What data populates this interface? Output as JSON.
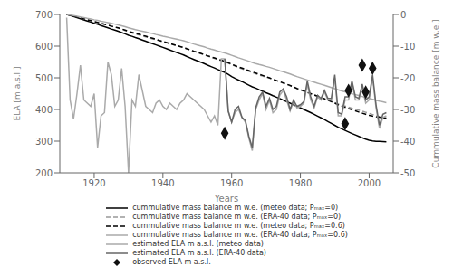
{
  "chart_data": {
    "type": "line",
    "xlabel": "Years",
    "ylabel": "ELA [m a.s.l.]",
    "y2label": "Cummulative mass balance [m w.e.]",
    "xlim": [
      1910,
      2007
    ],
    "xticks": [
      1920,
      1940,
      1960,
      1980,
      2000
    ],
    "ylim": [
      200,
      700
    ],
    "yticks": [
      200,
      300,
      400,
      500,
      600,
      700
    ],
    "y2lim": [
      -50,
      0
    ],
    "y2ticks": [
      0,
      -10,
      -20,
      -30,
      -40,
      -50
    ],
    "grid": false,
    "legend": "bottom",
    "series": [
      {
        "name": "cummulative mass balance m w.e. (meteo data; Pₘₐₓ=0)",
        "type": "line",
        "axis": "y2",
        "color": "#000000",
        "line_style": "solid",
        "x": [
          1912,
          1913,
          1914,
          1915,
          1916,
          1917,
          1918,
          1919,
          1920,
          1921,
          1922,
          1923,
          1924,
          1925,
          1926,
          1927,
          1928,
          1929,
          1930,
          1931,
          1932,
          1933,
          1934,
          1935,
          1936,
          1937,
          1938,
          1939,
          1940,
          1941,
          1942,
          1943,
          1944,
          1945,
          1946,
          1947,
          1948,
          1949,
          1950,
          1951,
          1952,
          1953,
          1954,
          1955,
          1956,
          1957,
          1958,
          1959,
          1960,
          1961,
          1962,
          1963,
          1964,
          1965,
          1966,
          1967,
          1968,
          1969,
          1970,
          1971,
          1972,
          1973,
          1974,
          1975,
          1976,
          1977,
          1978,
          1979,
          1980,
          1981,
          1982,
          1983,
          1984,
          1985,
          1986,
          1987,
          1988,
          1989,
          1990,
          1991,
          1992,
          1993,
          1994,
          1995,
          1996,
          1997,
          1998,
          1999,
          2000,
          2001,
          2002,
          2003,
          2004,
          2005
        ],
        "values": [
          0,
          -0.3,
          -0.65,
          -1.0,
          -1.35,
          -1.7,
          -2.05,
          -2.4,
          -2.8,
          -3.1,
          -3.5,
          -3.85,
          -4.2,
          -4.6,
          -4.95,
          -5.3,
          -5.7,
          -6.1,
          -6.55,
          -6.9,
          -7.3,
          -7.65,
          -8.05,
          -8.45,
          -8.85,
          -9.2,
          -9.6,
          -10.0,
          -10.4,
          -10.8,
          -11.2,
          -11.6,
          -12.0,
          -12.4,
          -12.8,
          -13.3,
          -13.75,
          -14.2,
          -14.65,
          -15.05,
          -15.5,
          -16.0,
          -16.45,
          -16.9,
          -17.4,
          -17.85,
          -18.3,
          -18.9,
          -19.6,
          -20.2,
          -20.7,
          -21.2,
          -21.75,
          -22.3,
          -22.85,
          -23.25,
          -23.75,
          -24.2,
          -24.7,
          -25.15,
          -25.65,
          -26.1,
          -26.55,
          -27.05,
          -27.55,
          -28.0,
          -28.5,
          -29.0,
          -29.5,
          -30.0,
          -30.5,
          -31.0,
          -31.55,
          -32.1,
          -32.65,
          -33.2,
          -33.8,
          -34.4,
          -35.0,
          -35.6,
          -36.1,
          -36.6,
          -37.1,
          -37.6,
          -38.05,
          -38.5,
          -38.95,
          -39.35,
          -39.7,
          -39.9,
          -40.05,
          -40.1,
          -40.15,
          -40.2
        ]
      },
      {
        "name": "cummulative mass balance m w.e. (ERA-40 data; Pₘₐₓ=0)",
        "type": "line",
        "axis": "y2",
        "color": "#999999",
        "line_style": "dashed",
        "x": [
          1912,
          1913,
          1914,
          1915,
          1916,
          1917,
          1918,
          1919,
          1920,
          1921,
          1922,
          1923,
          1924,
          1925,
          1926,
          1927,
          1928,
          1929,
          1930,
          1931,
          1932,
          1933,
          1934,
          1935,
          1936,
          1937,
          1938,
          1939,
          1940,
          1941,
          1942,
          1943,
          1944,
          1945,
          1946,
          1947,
          1948,
          1949,
          1950,
          1951,
          1952,
          1953,
          1954,
          1955,
          1956,
          1957,
          1958,
          1959,
          1960,
          1961,
          1962,
          1963,
          1964,
          1965,
          1966,
          1967,
          1968,
          1969,
          1970,
          1971,
          1972,
          1973,
          1974,
          1975,
          1976,
          1977,
          1978,
          1979,
          1980,
          1981,
          1982,
          1983,
          1984,
          1985,
          1986,
          1987,
          1988,
          1989,
          1990,
          1991,
          1992,
          1993,
          1994,
          1995,
          1996,
          1997,
          1998,
          1999,
          2000,
          2001,
          2002,
          2003,
          2004,
          2005
        ],
        "values": [
          0,
          -0.2,
          -0.45,
          -0.75,
          -1.05,
          -1.35,
          -1.65,
          -1.95,
          -2.25,
          -2.55,
          -2.85,
          -3.1,
          -3.4,
          -3.7,
          -4.0,
          -4.3,
          -4.65,
          -5.05,
          -5.45,
          -5.8,
          -6.15,
          -6.45,
          -6.75,
          -7.05,
          -7.4,
          -7.7,
          -8.0,
          -8.3,
          -8.6,
          -8.9,
          -9.2,
          -9.5,
          -9.8,
          -10.1,
          -10.4,
          -10.8,
          -11.2,
          -11.6,
          -12.0,
          -12.35,
          -12.75,
          -13.15,
          -13.5,
          -13.85,
          -14.25,
          -14.6,
          -14.95,
          -15.4,
          -15.85,
          -16.3,
          -16.75,
          -17.15,
          -17.55,
          -17.95,
          -18.35,
          -18.75,
          -19.1,
          -19.45,
          -19.8,
          -20.1,
          -20.5,
          -20.9,
          -21.3,
          -21.7,
          -22.1,
          -22.5,
          -22.95,
          -23.4,
          -23.8,
          -24.2,
          -24.65,
          -25.05,
          -25.45,
          -25.85,
          -26.25,
          -26.65,
          -27.05,
          -27.45,
          -27.85,
          -28.25,
          -28.6,
          -28.95,
          -29.3,
          -29.65,
          -29.95,
          -30.2,
          -30.55,
          -30.9,
          -31.25,
          -31.6,
          -31.95,
          -32.3,
          -32.6,
          -32.9
        ]
      },
      {
        "name": "cummulative mass balance m w.e. (meteo data; Pₘₐₓ=0.6)",
        "type": "line",
        "axis": "y2",
        "color": "#000000",
        "line_style": "dashed",
        "x": [
          1912,
          1913,
          1914,
          1915,
          1916,
          1917,
          1918,
          1919,
          1920,
          1921,
          1922,
          1923,
          1924,
          1925,
          1926,
          1927,
          1928,
          1929,
          1930,
          1931,
          1932,
          1933,
          1934,
          1935,
          1936,
          1937,
          1938,
          1939,
          1940,
          1941,
          1942,
          1943,
          1944,
          1945,
          1946,
          1947,
          1948,
          1949,
          1950,
          1951,
          1952,
          1953,
          1954,
          1955,
          1956,
          1957,
          1958,
          1959,
          1960,
          1961,
          1962,
          1963,
          1964,
          1965,
          1966,
          1967,
          1968,
          1969,
          1970,
          1971,
          1972,
          1973,
          1974,
          1975,
          1976,
          1977,
          1978,
          1979,
          1980,
          1981,
          1982,
          1983,
          1984,
          1985,
          1986,
          1987,
          1988,
          1989,
          1990,
          1991,
          1992,
          1993,
          1994,
          1995,
          1996,
          1997,
          1998,
          1999,
          2000,
          2001,
          2002,
          2003,
          2004,
          2005
        ],
        "values": [
          0,
          -0.25,
          -0.52,
          -0.8,
          -1.07,
          -1.35,
          -1.65,
          -1.92,
          -2.22,
          -2.5,
          -2.8,
          -3.08,
          -3.36,
          -3.68,
          -3.96,
          -4.24,
          -4.56,
          -4.92,
          -5.3,
          -5.62,
          -5.96,
          -6.24,
          -6.56,
          -6.88,
          -7.2,
          -7.52,
          -7.84,
          -8.2,
          -8.52,
          -8.84,
          -9.16,
          -9.48,
          -9.8,
          -10.12,
          -10.44,
          -10.84,
          -11.2,
          -11.6,
          -11.96,
          -12.28,
          -12.64,
          -13.04,
          -13.4,
          -13.72,
          -14.12,
          -14.44,
          -14.76,
          -15.2,
          -15.7,
          -16.16,
          -16.56,
          -16.92,
          -17.32,
          -17.72,
          -18.12,
          -18.48,
          -18.88,
          -19.24,
          -19.64,
          -20.0,
          -20.44,
          -20.84,
          -21.2,
          -21.6,
          -22.0,
          -22.4,
          -22.88,
          -23.36,
          -23.76,
          -24.16,
          -24.56,
          -24.96,
          -25.4,
          -25.8,
          -26.2,
          -26.6,
          -27.04,
          -27.52,
          -28.0,
          -28.48,
          -28.88,
          -29.28,
          -29.7,
          -30.08,
          -30.44,
          -30.82,
          -31.18,
          -31.52,
          -31.84,
          -32.08,
          -32.28,
          -32.44,
          -32.56,
          -32.7
        ]
      },
      {
        "name": "cummulative mass balance m w.e. (ERA-40 data; Pₘₐₓ=0.6)",
        "type": "line",
        "axis": "y2",
        "color": "#aaaaaa",
        "line_style": "solid",
        "x": [
          1912,
          1913,
          1914,
          1915,
          1916,
          1917,
          1918,
          1919,
          1920,
          1921,
          1922,
          1923,
          1924,
          1925,
          1926,
          1927,
          1928,
          1929,
          1930,
          1931,
          1932,
          1933,
          1934,
          1935,
          1936,
          1937,
          1938,
          1939,
          1940,
          1941,
          1942,
          1943,
          1944,
          1945,
          1946,
          1947,
          1948,
          1949,
          1950,
          1951,
          1952,
          1953,
          1954,
          1955,
          1956,
          1957,
          1958,
          1959,
          1960,
          1961,
          1962,
          1963,
          1964,
          1965,
          1966,
          1967,
          1968,
          1969,
          1970,
          1971,
          1972,
          1973,
          1974,
          1975,
          1976,
          1977,
          1978,
          1979,
          1980,
          1981,
          1982,
          1983,
          1984,
          1985,
          1986,
          1987,
          1988,
          1989,
          1990,
          1991,
          1992,
          1993,
          1994,
          1995,
          1996,
          1997,
          1998,
          1999,
          2000,
          2001,
          2002,
          2003,
          2004,
          2005
        ],
        "values": [
          0,
          -0.15,
          -0.35,
          -0.56,
          -0.8,
          -1.0,
          -1.24,
          -1.44,
          -1.68,
          -1.88,
          -2.12,
          -2.32,
          -2.56,
          -2.8,
          -3.04,
          -3.28,
          -3.56,
          -3.88,
          -4.2,
          -4.5,
          -4.8,
          -5.04,
          -5.28,
          -5.52,
          -5.8,
          -6.04,
          -6.32,
          -6.56,
          -6.84,
          -7.08,
          -7.32,
          -7.56,
          -7.8,
          -8.04,
          -8.28,
          -8.6,
          -8.96,
          -9.32,
          -9.64,
          -9.92,
          -10.24,
          -10.6,
          -10.92,
          -11.2,
          -11.56,
          -11.84,
          -12.12,
          -12.48,
          -12.88,
          -13.28,
          -13.68,
          -14.04,
          -14.4,
          -14.76,
          -15.12,
          -15.48,
          -15.8,
          -16.08,
          -16.4,
          -16.68,
          -17.04,
          -17.4,
          -17.76,
          -18.08,
          -18.44,
          -18.8,
          -19.2,
          -19.6,
          -19.96,
          -20.32,
          -20.68,
          -21.04,
          -21.36,
          -21.72,
          -22.04,
          -22.36,
          -22.72,
          -23.08,
          -23.44,
          -23.8,
          -24.12,
          -24.4,
          -24.72,
          -25.04,
          -25.32,
          -25.6,
          -25.9,
          -26.2,
          -26.5,
          -26.8,
          -27.08,
          -27.36,
          -27.6,
          -27.84
        ]
      },
      {
        "name": "estimated ELA m a.s.l. (meteo data)",
        "type": "line",
        "axis": "y",
        "color": "#aaaaaa",
        "line_style": "solid",
        "x": [
          1912,
          1913,
          1914,
          1915,
          1916,
          1917,
          1918,
          1919,
          1920,
          1921,
          1922,
          1923,
          1924,
          1925,
          1926,
          1927,
          1928,
          1929,
          1930,
          1931,
          1932,
          1933,
          1934,
          1935,
          1936,
          1937,
          1938,
          1939,
          1940,
          1941,
          1942,
          1943,
          1944,
          1945,
          1946,
          1947,
          1948,
          1949,
          1950,
          1951,
          1952,
          1953,
          1954,
          1955,
          1956,
          1957,
          1958,
          1959,
          1960,
          1961,
          1962,
          1963,
          1964,
          1965,
          1966,
          1967,
          1968,
          1969,
          1970,
          1971,
          1972,
          1973,
          1974,
          1975,
          1976,
          1977,
          1978,
          1979,
          1980,
          1981,
          1982,
          1983,
          1984,
          1985,
          1986,
          1987,
          1988,
          1989,
          1990,
          1991,
          1992,
          1993,
          1994,
          1995,
          1996,
          1997,
          1998,
          1999,
          2000,
          2001,
          2002,
          2003,
          2004,
          2005
        ],
        "values": [
          690,
          430,
          370,
          450,
          540,
          430,
          420,
          410,
          450,
          280,
          380,
          390,
          550,
          510,
          410,
          430,
          530,
          410,
          200,
          430,
          410,
          510,
          460,
          410,
          400,
          390,
          420,
          430,
          410,
          400,
          420,
          410,
          400,
          420,
          430,
          450,
          440,
          430,
          420,
          410,
          400,
          380,
          360,
          380,
          350,
          560,
          560,
          395,
          360,
          390,
          400,
          375,
          360,
          310,
          270,
          400,
          430,
          450,
          400,
          430,
          390,
          400,
          445,
          460,
          430,
          395,
          425,
          405,
          410,
          420,
          480,
          430,
          405,
          440,
          430,
          455,
          430,
          430,
          500,
          380,
          380,
          430,
          430,
          485,
          430,
          430,
          470,
          420,
          430,
          500,
          405,
          340,
          375,
          380
        ]
      },
      {
        "name": "estimated ELA m a.s.l. (ERA-40 data)",
        "type": "line",
        "axis": "y",
        "color": "#666666",
        "line_style": "solid",
        "x": [
          1958,
          1959,
          1960,
          1961,
          1962,
          1963,
          1964,
          1965,
          1966,
          1967,
          1968,
          1969,
          1970,
          1971,
          1972,
          1973,
          1974,
          1975,
          1976,
          1977,
          1978,
          1979,
          1980,
          1981,
          1982,
          1983,
          1984,
          1985,
          1986,
          1987,
          1988,
          1989,
          1990,
          1991,
          1992,
          1993,
          1994,
          1995,
          1996,
          1997,
          1998,
          1999,
          2000,
          2001,
          2002,
          2003,
          2004,
          2005
        ],
        "values": [
          560,
          395,
          360,
          400,
          410,
          375,
          365,
          315,
          280,
          405,
          440,
          455,
          410,
          435,
          400,
          410,
          455,
          465,
          440,
          400,
          430,
          410,
          415,
          425,
          490,
          440,
          410,
          445,
          435,
          460,
          435,
          435,
          510,
          390,
          385,
          440,
          440,
          490,
          440,
          435,
          480,
          430,
          440,
          510,
          415,
          350,
          385,
          390
        ]
      },
      {
        "name": "observed ELA m a.s.l.",
        "type": "scatter",
        "axis": "y",
        "color": "#111111",
        "marker": "diamond",
        "x": [
          1958,
          1993,
          1994,
          1998,
          1999,
          2001
        ],
        "values": [
          325,
          355,
          460,
          540,
          455,
          530
        ]
      }
    ]
  }
}
